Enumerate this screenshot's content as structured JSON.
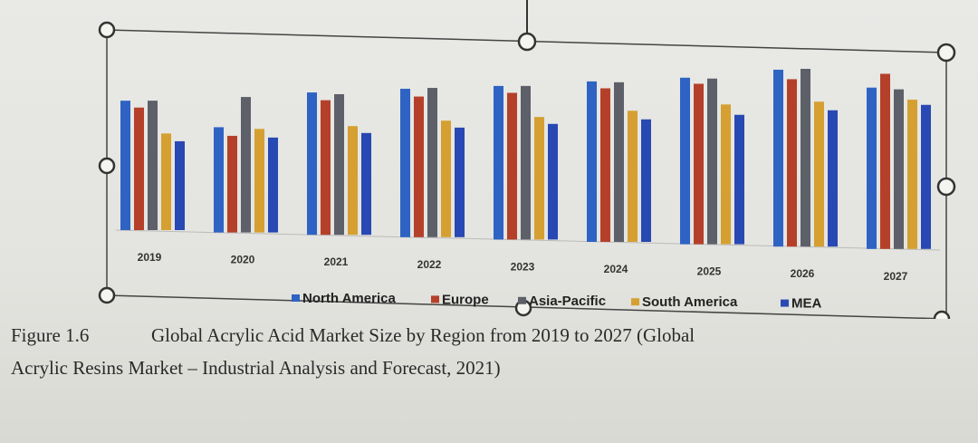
{
  "chart_data": {
    "type": "bar",
    "title": "",
    "xlabel": "",
    "ylabel": "",
    "categories": [
      "2019",
      "2020",
      "2021",
      "2022",
      "2023",
      "2024",
      "2025",
      "2026",
      "2027"
    ],
    "series": [
      {
        "name": "North America",
        "color": "#2e63c4",
        "values": [
          150,
          122,
          165,
          172,
          178,
          186,
          193,
          205,
          187
        ]
      },
      {
        "name": "Europe",
        "color": "#b5402a",
        "values": [
          142,
          112,
          156,
          163,
          170,
          178,
          186,
          194,
          203
        ]
      },
      {
        "name": "Asia-Pacific",
        "color": "#5d6068",
        "values": [
          150,
          157,
          163,
          173,
          178,
          185,
          192,
          206,
          185
        ]
      },
      {
        "name": "South  America",
        "color": "#d5a031",
        "values": [
          112,
          120,
          126,
          135,
          142,
          152,
          162,
          168,
          173
        ]
      },
      {
        "name": "MEA",
        "color": "#2848b3",
        "values": [
          103,
          110,
          118,
          127,
          134,
          142,
          150,
          158,
          167
        ]
      }
    ],
    "ylim": [
      0,
      210
    ],
    "grid": false,
    "legend_position": "bottom"
  },
  "caption": {
    "label": "Figure 1.6",
    "text": "Global Acrylic Acid Market Size by Region from 2019 to 2027 (Global",
    "line2": "Acrylic Resins Market – Industrial Analysis and Forecast, 2021)"
  }
}
